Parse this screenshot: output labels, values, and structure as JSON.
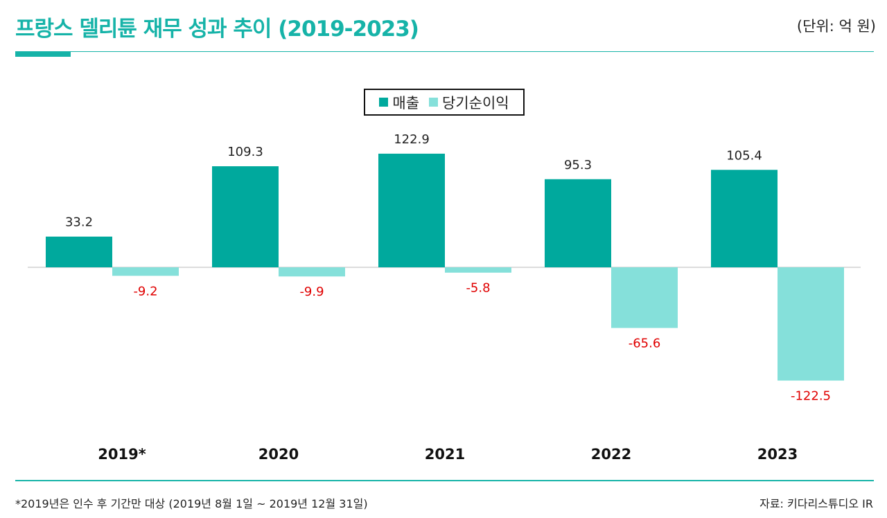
{
  "header": {
    "title": "프랑스 델리튠 재무 성과 추이 (2019-2023)",
    "unit": "(단위: 억 원)"
  },
  "footer": {
    "footnote": "*2019년은 인수 후 기간만 대상 (2019년 8월 1일 ~ 2019년 12월 31일)",
    "source": "자료: 키다리스튜디오 IR"
  },
  "colors": {
    "accent": "#16b3a8",
    "revenue": "#00a99d",
    "net_income": "#85e0da",
    "negative_label": "#e00000"
  },
  "chart_data": {
    "type": "bar",
    "title": "프랑스 델리튠 재무 성과 추이 (2019-2023)",
    "unit": "(단위: 억 원)",
    "categories": [
      "2019*",
      "2020",
      "2021",
      "2022",
      "2023"
    ],
    "series": [
      {
        "name": "매출",
        "values": [
          33.2,
          109.3,
          122.9,
          95.3,
          105.4
        ]
      },
      {
        "name": "당기순이익",
        "values": [
          -9.2,
          -9.9,
          -5.8,
          -65.6,
          -122.5
        ]
      }
    ],
    "value_labels": {
      "매출": [
        "33.2",
        "109.3",
        "122.9",
        "95.3",
        "105.4"
      ],
      "당기순이익": [
        "-9.2",
        "-9.9",
        "-5.8",
        "-65.6",
        "-122.5"
      ]
    },
    "legend": [
      "매출",
      "당기순이익"
    ],
    "legend_position": "top-center",
    "grid": false
  }
}
